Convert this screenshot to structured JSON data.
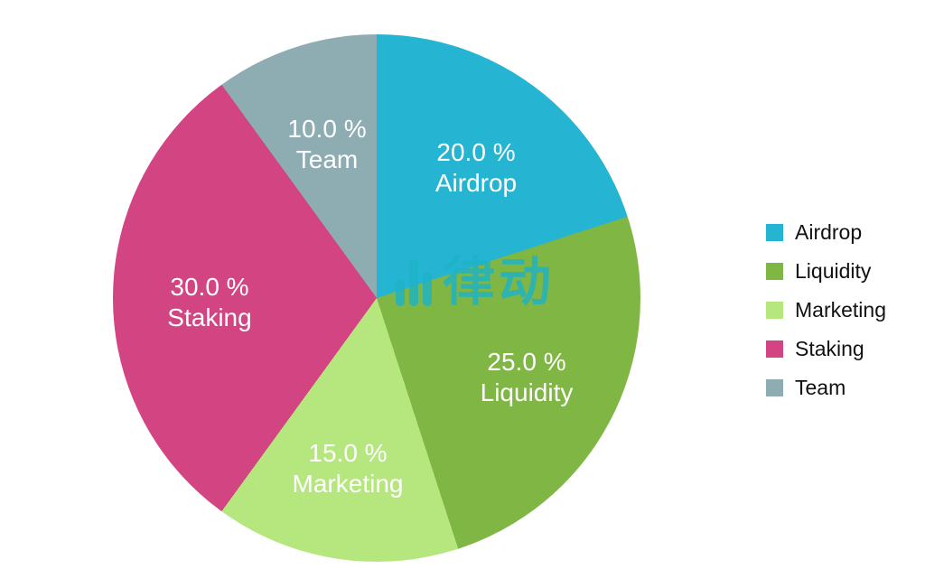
{
  "chart_data": {
    "type": "pie",
    "title": "",
    "categories": [
      "Airdrop",
      "Liquidity",
      "Marketing",
      "Staking",
      "Team"
    ],
    "values": [
      20.0,
      25.0,
      15.0,
      30.0,
      10.0
    ],
    "pct_labels": [
      "20.0 %",
      "25.0 %",
      "15.0 %",
      "30.0 %",
      "10.0 %"
    ],
    "colors": [
      "#25b5d3",
      "#7fb644",
      "#b5e77e",
      "#d24482",
      "#8eadb3"
    ],
    "start_angle": "top",
    "direction": "clockwise",
    "legend_position": "right",
    "slice_label_color": "#ffffff"
  },
  "watermark": {
    "text": "律动"
  }
}
